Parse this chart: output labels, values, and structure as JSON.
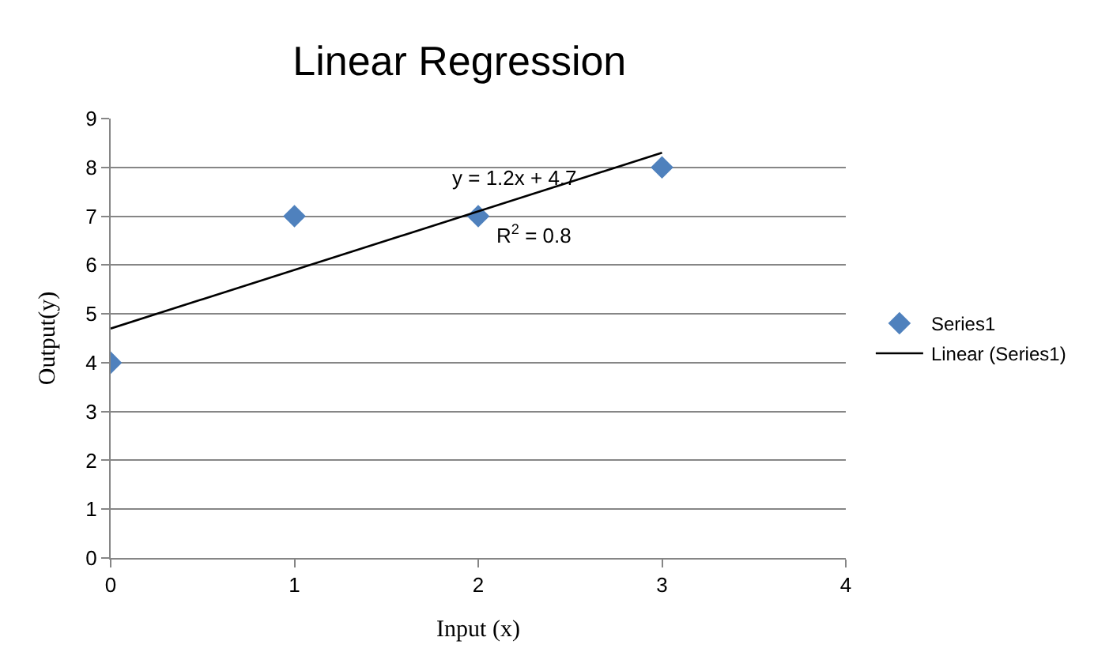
{
  "chart_data": {
    "type": "scatter",
    "title": "Linear Regression",
    "xlabel": "Input (x)",
    "ylabel": "Output(y)",
    "xlim": [
      0,
      4
    ],
    "xticks": [
      0,
      1,
      2,
      3,
      4
    ],
    "ylim": [
      0,
      9
    ],
    "yticks": [
      0,
      1,
      2,
      3,
      4,
      5,
      6,
      7,
      8,
      9
    ],
    "grid": "y",
    "legend": "right",
    "marker": "diamond",
    "series": [
      {
        "name": "Series1",
        "color": "#4f81bd",
        "x": [
          0,
          1,
          2,
          3
        ],
        "values": [
          4,
          7,
          7,
          8
        ]
      },
      {
        "name": "Linear (Series1)",
        "type": "line",
        "color": "#000000",
        "x": [
          0,
          3
        ],
        "values": [
          4.7,
          8.3
        ],
        "marker": "none"
      }
    ],
    "annotations": [
      "y = 1.2x + 4.7",
      "R$^{2}$ = 0.8"
    ]
  }
}
